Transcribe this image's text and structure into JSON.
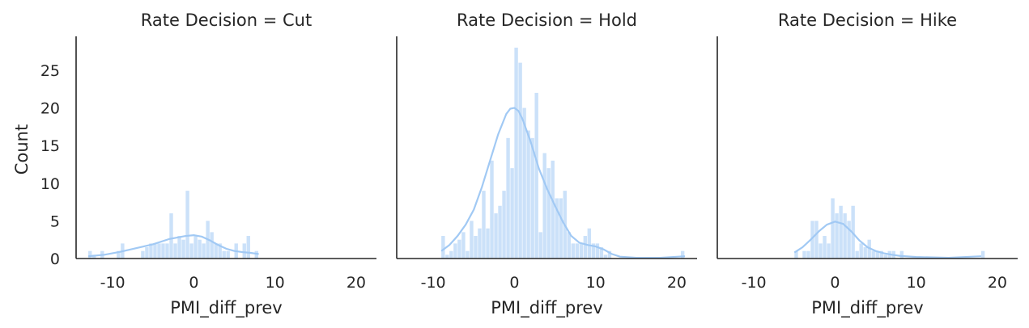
{
  "chart_data": {
    "type": "histogram",
    "ylabel": "Count",
    "ylim": [
      0,
      29.5
    ],
    "yticks": [
      0,
      5,
      10,
      15,
      20,
      25
    ],
    "xlim": [
      -14.5,
      22.5
    ],
    "xticks": [
      -10,
      0,
      10,
      20
    ],
    "bar_color": "#a1c9f4",
    "kde_color": "#a1c9f4",
    "grid": false,
    "bin_width": 0.5,
    "panels": [
      {
        "title": "Rate Decision = Cut",
        "xlabel": "PMI_diff_prev",
        "bins": [
          [
            -13,
            1
          ],
          [
            -12.5,
            0.5
          ],
          [
            -11.5,
            1
          ],
          [
            -9.5,
            1
          ],
          [
            -9,
            2
          ],
          [
            -6.5,
            1
          ],
          [
            -6,
            1.5
          ],
          [
            -5.5,
            2
          ],
          [
            -5,
            2
          ],
          [
            -4.5,
            2
          ],
          [
            -4,
            2
          ],
          [
            -3.5,
            2
          ],
          [
            -3,
            6
          ],
          [
            -2.5,
            2
          ],
          [
            -2,
            3
          ],
          [
            -1.5,
            2.5
          ],
          [
            -1,
            9
          ],
          [
            -0.5,
            2
          ],
          [
            0,
            3
          ],
          [
            0.5,
            2.5
          ],
          [
            1,
            2
          ],
          [
            1.5,
            5
          ],
          [
            2,
            3.5
          ],
          [
            2.5,
            2
          ],
          [
            3,
            2
          ],
          [
            3.5,
            1
          ],
          [
            4,
            1
          ],
          [
            5,
            2
          ],
          [
            6,
            2
          ],
          [
            6.5,
            3
          ],
          [
            7.5,
            1
          ]
        ],
        "kde": [
          [
            -13,
            0.3
          ],
          [
            -11,
            0.5
          ],
          [
            -9,
            0.9
          ],
          [
            -7,
            1.4
          ],
          [
            -5,
            1.9
          ],
          [
            -3,
            2.6
          ],
          [
            -1,
            3.0
          ],
          [
            0,
            3.1
          ],
          [
            1,
            2.9
          ],
          [
            2,
            2.4
          ],
          [
            3,
            1.8
          ],
          [
            4,
            1.3
          ],
          [
            5,
            1.0
          ],
          [
            6,
            0.85
          ],
          [
            7,
            0.75
          ],
          [
            8,
            0.6
          ]
        ]
      },
      {
        "title": "Rate Decision = Hold",
        "xlabel": "PMI_diff_prev",
        "bins": [
          [
            -9,
            3
          ],
          [
            -8.5,
            0.5
          ],
          [
            -8,
            1
          ],
          [
            -7.5,
            2
          ],
          [
            -7,
            2.5
          ],
          [
            -6.5,
            3.5
          ],
          [
            -6,
            1
          ],
          [
            -5.5,
            5
          ],
          [
            -5,
            3
          ],
          [
            -4.5,
            4
          ],
          [
            -4,
            9
          ],
          [
            -3.5,
            4
          ],
          [
            -3,
            13
          ],
          [
            -2.5,
            6
          ],
          [
            -2,
            7
          ],
          [
            -1.5,
            9
          ],
          [
            -1,
            16
          ],
          [
            -0.5,
            12
          ],
          [
            0,
            28
          ],
          [
            0.5,
            26
          ],
          [
            1,
            20
          ],
          [
            1.5,
            17
          ],
          [
            2,
            16
          ],
          [
            2.5,
            22
          ],
          [
            3,
            3.5
          ],
          [
            3.5,
            14
          ],
          [
            4,
            12
          ],
          [
            4.5,
            13
          ],
          [
            5,
            8
          ],
          [
            5.5,
            8
          ],
          [
            6,
            9
          ],
          [
            6.5,
            3.5
          ],
          [
            7,
            2
          ],
          [
            7.5,
            2
          ],
          [
            8,
            2
          ],
          [
            8.5,
            3
          ],
          [
            9,
            4
          ],
          [
            9.5,
            2
          ],
          [
            10,
            2
          ],
          [
            10.5,
            1.5
          ],
          [
            11,
            0.5
          ],
          [
            11.5,
            1
          ],
          [
            20.5,
            1
          ]
        ],
        "kde": [
          [
            -9,
            1.0
          ],
          [
            -8,
            1.8
          ],
          [
            -7,
            3.0
          ],
          [
            -6,
            4.5
          ],
          [
            -5,
            6.5
          ],
          [
            -4,
            9.5
          ],
          [
            -3,
            13.0
          ],
          [
            -2,
            16.5
          ],
          [
            -1,
            19.2
          ],
          [
            -0.5,
            19.9
          ],
          [
            0,
            20.0
          ],
          [
            0.5,
            19.6
          ],
          [
            1,
            18.5
          ],
          [
            2,
            15.5
          ],
          [
            3,
            12.0
          ],
          [
            4,
            9.3
          ],
          [
            5,
            7.0
          ],
          [
            6,
            4.8
          ],
          [
            7,
            3.0
          ],
          [
            8,
            2.1
          ],
          [
            9,
            1.8
          ],
          [
            10,
            1.6
          ],
          [
            11,
            1.2
          ],
          [
            12,
            0.6
          ],
          [
            13,
            0.25
          ],
          [
            15,
            0.1
          ],
          [
            18,
            0.1
          ],
          [
            21,
            0.3
          ]
        ]
      },
      {
        "title": "Rate Decision = Hike",
        "xlabel": "PMI_diff_prev",
        "bins": [
          [
            -5,
            1
          ],
          [
            -4,
            1
          ],
          [
            -3.5,
            1
          ],
          [
            -3,
            5
          ],
          [
            -2.5,
            5
          ],
          [
            -2,
            2
          ],
          [
            -1.5,
            3
          ],
          [
            -1,
            2
          ],
          [
            -0.5,
            8
          ],
          [
            0,
            6
          ],
          [
            0.5,
            7
          ],
          [
            1,
            6
          ],
          [
            1.5,
            5
          ],
          [
            2,
            7
          ],
          [
            2.5,
            1
          ],
          [
            3,
            2
          ],
          [
            3.5,
            1.5
          ],
          [
            4,
            2.5
          ],
          [
            4.5,
            1
          ],
          [
            5,
            1
          ],
          [
            5.5,
            1
          ],
          [
            6,
            0.5
          ],
          [
            6.5,
            1
          ],
          [
            7,
            1
          ],
          [
            8,
            1
          ],
          [
            18,
            1
          ]
        ],
        "kde": [
          [
            -5,
            0.8
          ],
          [
            -4,
            1.5
          ],
          [
            -3,
            2.5
          ],
          [
            -2,
            3.6
          ],
          [
            -1,
            4.5
          ],
          [
            0,
            4.9
          ],
          [
            1,
            4.6
          ],
          [
            2,
            3.6
          ],
          [
            3,
            2.4
          ],
          [
            4,
            1.5
          ],
          [
            5,
            1.0
          ],
          [
            6,
            0.7
          ],
          [
            7,
            0.5
          ],
          [
            8,
            0.35
          ],
          [
            10,
            0.2
          ],
          [
            14,
            0.1
          ],
          [
            18,
            0.3
          ]
        ]
      }
    ]
  }
}
